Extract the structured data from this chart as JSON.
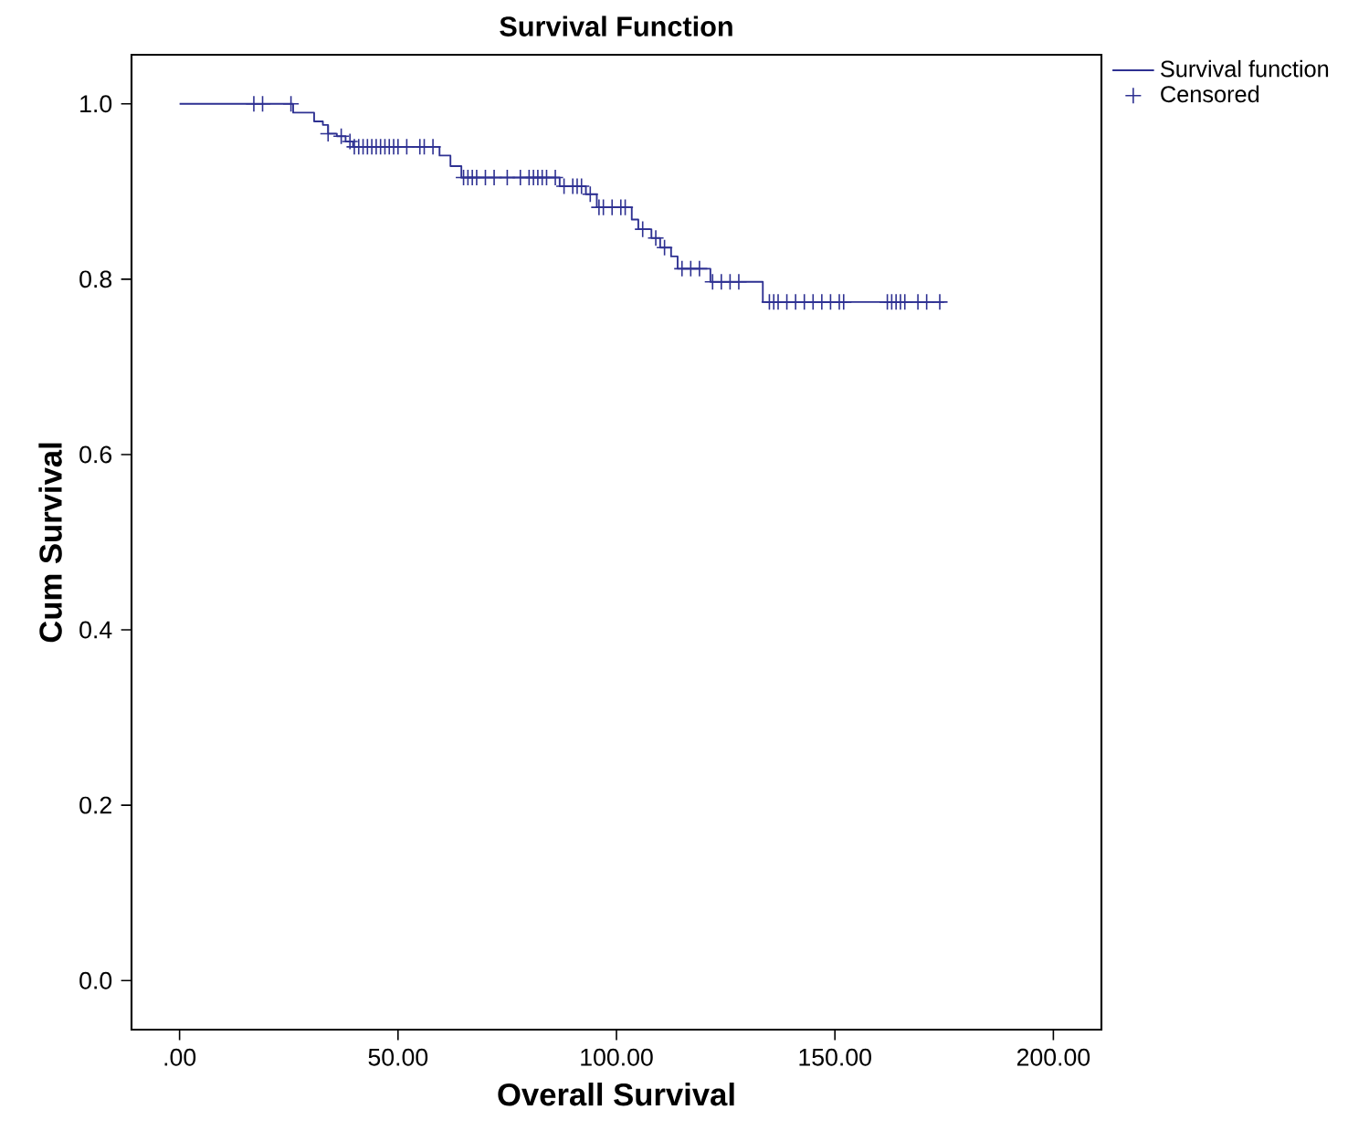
{
  "chart_data": {
    "type": "step",
    "title": "Survival Function",
    "xlabel": "Overall Survival",
    "ylabel": "Cum Survival",
    "xlim": [
      -11,
      211
    ],
    "ylim": [
      -0.056,
      1.056
    ],
    "xticks": [
      {
        "value": 0,
        "label": ".00"
      },
      {
        "value": 50,
        "label": "50.00"
      },
      {
        "value": 100,
        "label": "100.00"
      },
      {
        "value": 150,
        "label": "150.00"
      },
      {
        "value": 200,
        "label": "200.00"
      }
    ],
    "yticks": [
      {
        "value": 0,
        "label": "0.0"
      },
      {
        "value": 0.2,
        "label": "0.2"
      },
      {
        "value": 0.4,
        "label": "0.4"
      },
      {
        "value": 0.6,
        "label": "0.6"
      },
      {
        "value": 0.8,
        "label": "0.8"
      },
      {
        "value": 1,
        "label": "1.0"
      }
    ],
    "legend": "top right",
    "grid": false,
    "series": [
      {
        "name": "Survival function",
        "color": "#2e3192",
        "x": [
          0,
          26,
          30.8,
          32.8,
          34,
          36,
          38,
          39.7,
          59.5,
          62,
          64.5,
          87,
          93,
          95.5,
          103.5,
          105,
          108,
          110,
          112.5,
          114,
          121.5,
          133.5,
          175
        ],
        "values": [
          1.0,
          0.99,
          0.98,
          0.976,
          0.966,
          0.963,
          0.957,
          0.951,
          0.941,
          0.929,
          0.916,
          0.906,
          0.897,
          0.882,
          0.868,
          0.857,
          0.847,
          0.836,
          0.826,
          0.812,
          0.797,
          0.774,
          0.774
        ]
      },
      {
        "name": "Censored",
        "type": "scatter",
        "marker": "cross",
        "color": "#2e3192",
        "x": [
          17,
          19,
          25.5,
          34,
          37,
          39,
          40,
          41,
          42,
          43,
          44,
          45,
          46,
          47,
          48,
          49,
          50,
          52,
          55,
          56,
          58,
          65,
          66,
          67,
          68,
          70,
          72,
          75,
          78,
          80,
          81,
          82,
          83,
          84,
          86,
          88,
          90,
          91,
          92,
          94,
          96,
          97,
          99,
          101,
          102,
          106,
          109,
          111,
          115,
          117,
          119,
          122,
          124,
          126,
          128,
          135,
          136,
          137,
          139,
          141,
          143,
          145,
          147,
          149,
          151,
          152,
          162,
          163,
          164,
          165,
          166,
          169,
          171,
          174
        ],
        "values": [
          1.0,
          1.0,
          1.0,
          0.966,
          0.963,
          0.957,
          0.951,
          0.951,
          0.951,
          0.951,
          0.951,
          0.951,
          0.951,
          0.951,
          0.951,
          0.951,
          0.951,
          0.951,
          0.951,
          0.951,
          0.951,
          0.916,
          0.916,
          0.916,
          0.916,
          0.916,
          0.916,
          0.916,
          0.916,
          0.916,
          0.916,
          0.916,
          0.916,
          0.916,
          0.916,
          0.906,
          0.906,
          0.906,
          0.906,
          0.897,
          0.882,
          0.882,
          0.882,
          0.882,
          0.882,
          0.857,
          0.847,
          0.836,
          0.812,
          0.812,
          0.812,
          0.797,
          0.797,
          0.797,
          0.797,
          0.774,
          0.774,
          0.774,
          0.774,
          0.774,
          0.774,
          0.774,
          0.774,
          0.774,
          0.774,
          0.774,
          0.774,
          0.774,
          0.774,
          0.774,
          0.774,
          0.774,
          0.774,
          0.774
        ]
      }
    ]
  }
}
